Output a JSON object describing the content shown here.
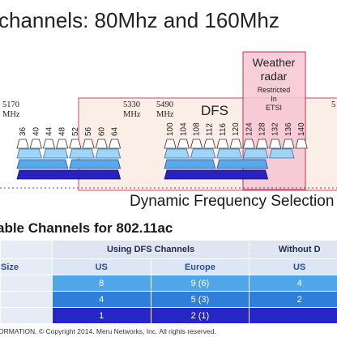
{
  "slide": {
    "title": "channels: 80Mhz and 160Mhz",
    "freq_labels": {
      "f5170": "5170",
      "f5330": "5330",
      "f5490": "5490",
      "mhz": "MHz"
    },
    "weather": {
      "line1": "Weather",
      "line2": "radar",
      "line3": "Restricted",
      "line4": "In",
      "line5": "ETSI"
    },
    "dfs_label": "DFS",
    "dfs_caption": "Dynamic Frequency Selection",
    "channels_low": [
      "36",
      "40",
      "44",
      "48",
      "52",
      "56",
      "60",
      "64"
    ],
    "channels_high": [
      "100",
      "104",
      "108",
      "112",
      "116",
      "120",
      "124",
      "128",
      "132",
      "136",
      "140"
    ],
    "table_title": "able Channels for 802.11ac",
    "table": {
      "group_dfs": "Using DFS Channels",
      "group_without": "Without D",
      "col_size": "Size",
      "col_us": "US",
      "col_europe": "Europe",
      "col_us2": "US",
      "rows": [
        {
          "us": "8",
          "europe": "9 (6)",
          "us2": "4"
        },
        {
          "us": "4",
          "europe": "5 (3)",
          "us2": "2"
        },
        {
          "us": "1",
          "europe": "2 (1)",
          "us2": ""
        }
      ]
    },
    "footer": "ORMATION. © Copyright 2014. Meru Networks, Inc. All rights reserved.",
    "colors": {
      "band_row1": "#9fd6f7",
      "band_row2": "#55a9ec",
      "band_row3": "#3273d6",
      "band_row4": "#2a22c0",
      "weather_box": "#f5c4d0",
      "dfs_box": "#fbeee6"
    }
  }
}
